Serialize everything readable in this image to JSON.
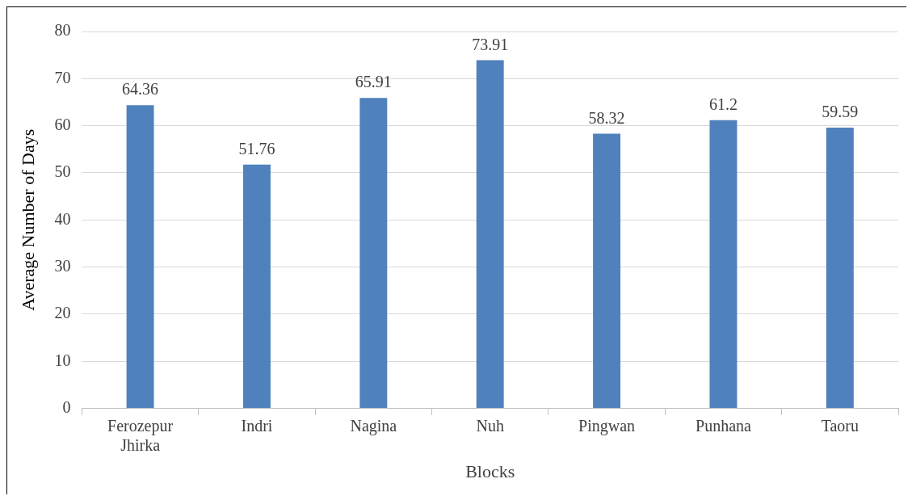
{
  "chart_data": {
    "type": "bar",
    "xlabel": "Blocks",
    "ylabel": "Average Number of Days",
    "categories": [
      "Ferozepur Jhirka",
      "Indri",
      "Nagina",
      "Nuh",
      "Pingwan",
      "Punhana",
      "Taoru"
    ],
    "values": [
      64.36,
      51.76,
      65.91,
      73.91,
      58.32,
      61.2,
      59.59
    ],
    "color": "#4f81bd",
    "ylim": [
      0,
      80
    ],
    "yticks": [
      0,
      10,
      20,
      30,
      40,
      50,
      60,
      70,
      80
    ],
    "grid": "y",
    "data_labels": true,
    "legend": false
  }
}
